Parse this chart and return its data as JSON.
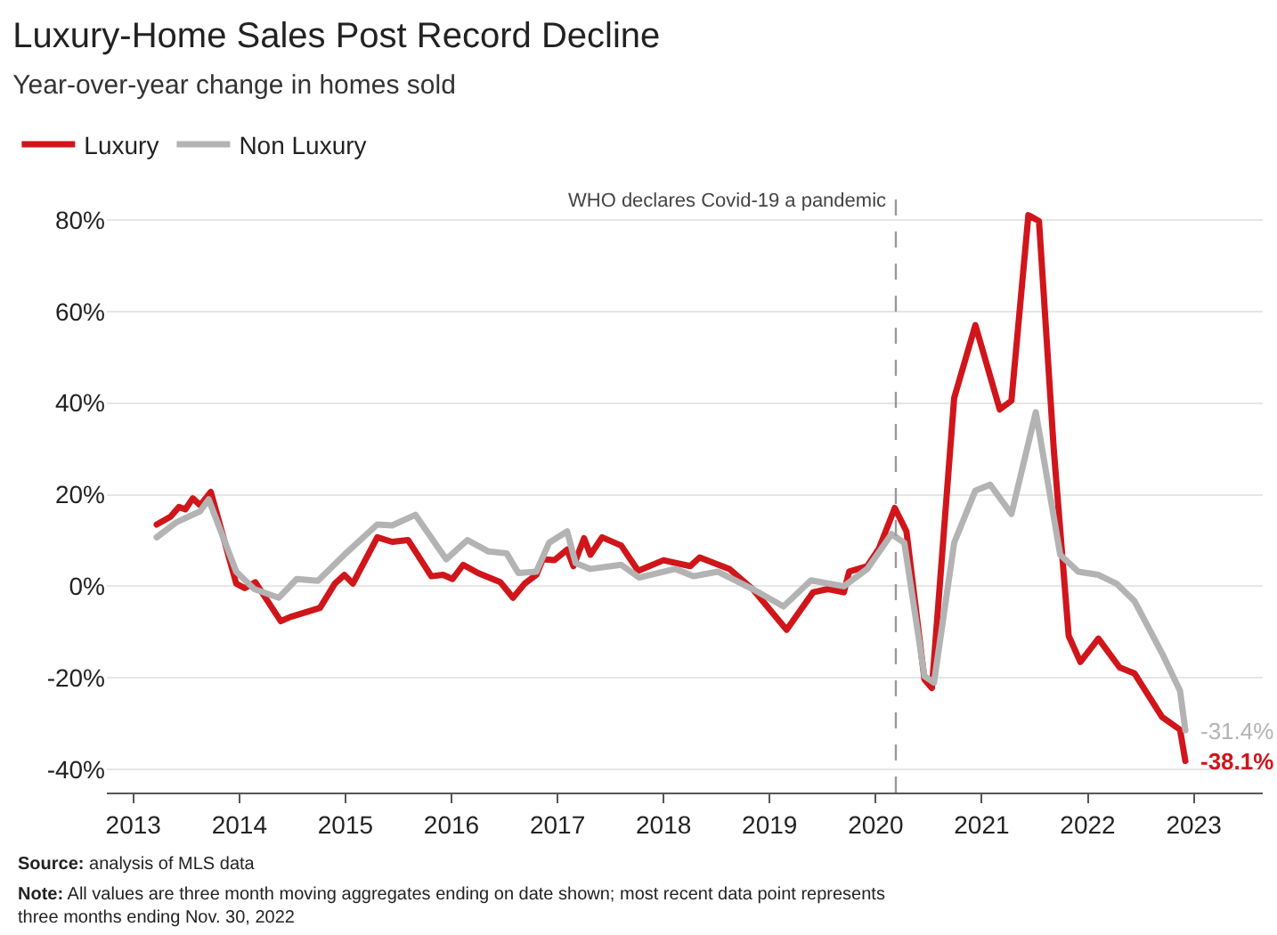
{
  "chart_data": {
    "type": "line",
    "title": "Luxury-Home Sales Post Record Decline",
    "subtitle": "Year-over-year change in homes sold",
    "series": [
      {
        "name": "Luxury",
        "color": "#d0161b",
        "x": [
          2013.22,
          2013.35,
          2013.43,
          2013.49,
          2013.56,
          2013.63,
          2013.73,
          2013.97,
          2014.05,
          2014.15,
          2014.39,
          2014.48,
          2014.76,
          2014.9,
          2014.99,
          2015.07,
          2015.3,
          2015.44,
          2015.59,
          2015.81,
          2015.92,
          2016.01,
          2016.11,
          2016.25,
          2016.46,
          2016.58,
          2016.69,
          2016.8,
          2016.86,
          2016.97,
          2017.09,
          2017.15,
          2017.25,
          2017.31,
          2017.42,
          2017.6,
          2017.76,
          2018.0,
          2018.25,
          2018.34,
          2018.62,
          2018.84,
          2019.16,
          2019.41,
          2019.55,
          2019.7,
          2019.75,
          2019.92,
          2020.03,
          2020.18,
          2020.29,
          2020.46,
          2020.53,
          2020.74,
          2020.94,
          2021.17,
          2021.28,
          2021.44,
          2021.54,
          2021.68,
          2021.82,
          2021.93,
          2022.1,
          2022.3,
          2022.44,
          2022.7,
          2022.87,
          2022.92
        ],
        "values": [
          13.5,
          15.2,
          17.3,
          16.8,
          19.2,
          17.7,
          20.6,
          0.6,
          -0.4,
          0.9,
          -7.6,
          -6.7,
          -4.7,
          0.6,
          2.5,
          0.6,
          10.7,
          9.7,
          10.1,
          2.2,
          2.5,
          1.6,
          4.7,
          2.9,
          0.9,
          -2.5,
          0.6,
          2.5,
          5.9,
          5.7,
          8.0,
          4.4,
          10.5,
          6.9,
          10.7,
          8.9,
          3.4,
          5.7,
          4.4,
          6.3,
          3.8,
          -0.6,
          -9.5,
          -1.3,
          -0.6,
          -1.3,
          3.2,
          4.4,
          8.2,
          17.1,
          12.0,
          -20.3,
          -22.2,
          41.1,
          57.0,
          38.6,
          40.5,
          81.0,
          79.7,
          29.7,
          -10.8,
          -16.5,
          -11.4,
          -17.7,
          -19.0,
          -28.5,
          -31.3,
          -38.1
        ],
        "value_labels": [
          null,
          null,
          null,
          null,
          null,
          null,
          null,
          null,
          null,
          null,
          null,
          null,
          null,
          null,
          null,
          null,
          null,
          null,
          null,
          null,
          null,
          null,
          null,
          null,
          null,
          null,
          null,
          null,
          null,
          null,
          null,
          null,
          null,
          null,
          null,
          null,
          null,
          null,
          null,
          null,
          null,
          null,
          null,
          null,
          null,
          null,
          null,
          null,
          null,
          null,
          null,
          null,
          null,
          null,
          null,
          null,
          null,
          null,
          null,
          null,
          null,
          null,
          null,
          null,
          null,
          null,
          null,
          "-38.1%"
        ]
      },
      {
        "name": "Non Luxury",
        "color": "#b3b3b3",
        "x": [
          2013.22,
          2013.4,
          2013.63,
          2013.71,
          2013.97,
          2014.14,
          2014.37,
          2014.54,
          2014.74,
          2014.99,
          2015.3,
          2015.44,
          2015.66,
          2015.95,
          2016.15,
          2016.35,
          2016.52,
          2016.63,
          2016.8,
          2016.92,
          2017.09,
          2017.17,
          2017.31,
          2017.6,
          2017.77,
          2018.11,
          2018.28,
          2018.51,
          2018.84,
          2019.13,
          2019.39,
          2019.7,
          2019.92,
          2020.15,
          2020.27,
          2020.46,
          2020.55,
          2020.74,
          2020.94,
          2021.08,
          2021.28,
          2021.51,
          2021.74,
          2021.91,
          2022.1,
          2022.27,
          2022.44,
          2022.7,
          2022.87,
          2022.92
        ],
        "values": [
          10.7,
          13.9,
          16.4,
          19.0,
          3.2,
          -0.6,
          -2.5,
          1.6,
          1.2,
          6.9,
          13.5,
          13.3,
          15.6,
          5.9,
          10.1,
          7.6,
          7.2,
          2.9,
          3.2,
          9.5,
          12.0,
          5.1,
          3.8,
          4.7,
          1.9,
          3.8,
          2.2,
          3.2,
          -0.6,
          -4.4,
          1.3,
          0.0,
          3.8,
          11.4,
          9.5,
          -19.6,
          -21.0,
          9.5,
          20.9,
          22.2,
          15.8,
          38.0,
          6.9,
          3.2,
          2.5,
          0.6,
          -3.2,
          -14.6,
          -22.8,
          -31.4
        ],
        "value_labels": [
          null,
          null,
          null,
          null,
          null,
          null,
          null,
          null,
          null,
          null,
          null,
          null,
          null,
          null,
          null,
          null,
          null,
          null,
          null,
          null,
          null,
          null,
          null,
          null,
          null,
          null,
          null,
          null,
          null,
          null,
          null,
          null,
          null,
          null,
          null,
          null,
          null,
          null,
          null,
          null,
          null,
          null,
          null,
          null,
          null,
          null,
          null,
          null,
          null,
          "-31.4%"
        ]
      }
    ],
    "xlim": [
      2012.75,
      2023.65
    ],
    "xticks": [
      2013,
      2014,
      2015,
      2016,
      2017,
      2018,
      2019,
      2020,
      2021,
      2022,
      2023
    ],
    "ylim": [
      -45,
      87
    ],
    "yticks": [
      {
        "value": -40,
        "label": "-40%"
      },
      {
        "value": -20,
        "label": "-20%"
      },
      {
        "value": 0,
        "label": "0%"
      },
      {
        "value": 20,
        "label": "20%"
      },
      {
        "value": 40,
        "label": "40%"
      },
      {
        "value": 60,
        "label": "60%"
      },
      {
        "value": 80,
        "label": "80%"
      }
    ],
    "grid": "y",
    "legend": "top left",
    "marker": "none",
    "line_style": "solid",
    "ref_lines": [
      {
        "axis": "x",
        "value": 2020.19,
        "label": "WHO declares Covid-19 a pandemic",
        "color": "#999999",
        "line_style": "dashed"
      }
    ],
    "annotations": [
      "Source: analysis of MLS data",
      "Note: All values are three month moving aggregates ending on date shown; most recent data point represents three months ending Nov. 30, 2022"
    ]
  }
}
